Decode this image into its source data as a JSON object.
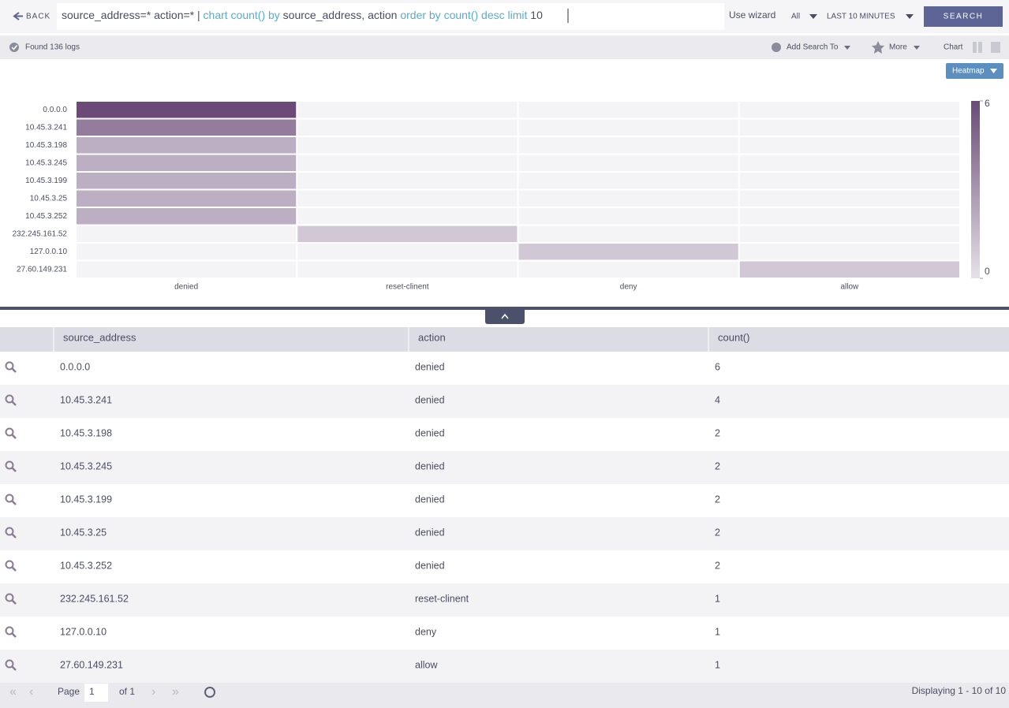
{
  "toolbar": {
    "back": "BACK",
    "query": [
      {
        "text": "source_address=* action=* | ",
        "color": "#4a4d63"
      },
      {
        "text": "chart count() by",
        "color": "#5aaad0"
      },
      {
        "text": " source_address, action ",
        "color": "#4a4d63"
      },
      {
        "text": "order by count() desc limit",
        "color": "#5aaad0"
      },
      {
        "text": " 10",
        "color": "#4a4d63"
      }
    ],
    "wizard": "Use wizard",
    "scope": "All",
    "range": "LAST 10 MINUTES",
    "search": "SEARCH"
  },
  "status": {
    "found": "Found 136 logs",
    "add_search": "Add Search To",
    "more": "More",
    "chart": "Chart"
  },
  "heatmap": {
    "mode": "Heatmap",
    "x": [
      "denied",
      "reset-clinent",
      "deny",
      "allow"
    ],
    "y": [
      "0.0.0.0",
      "10.45.3.241",
      "10.45.3.198",
      "10.45.3.245",
      "10.45.3.199",
      "10.45.3.25",
      "10.45.3.252",
      "232.245.161.52",
      "127.0.0.10",
      "27.60.149.231"
    ],
    "values": [
      [
        6,
        null,
        null,
        null
      ],
      [
        4,
        null,
        null,
        null
      ],
      [
        2,
        null,
        null,
        null
      ],
      [
        2,
        null,
        null,
        null
      ],
      [
        2,
        null,
        null,
        null
      ],
      [
        2,
        null,
        null,
        null
      ],
      [
        2,
        null,
        null,
        null
      ],
      [
        null,
        1,
        null,
        null
      ],
      [
        null,
        null,
        1,
        null
      ],
      [
        null,
        null,
        null,
        1
      ]
    ],
    "zlim": [
      0,
      6
    ],
    "zticks": [
      0,
      6
    ],
    "colorscale": [
      "#e6e1e8",
      "#6b4a78"
    ],
    "empty_color": "#f4f4f6"
  },
  "table": {
    "columns": [
      "source_address",
      "action",
      "count()"
    ],
    "rows": [
      [
        "0.0.0.0",
        "denied",
        6
      ],
      [
        "10.45.3.241",
        "denied",
        4
      ],
      [
        "10.45.3.198",
        "denied",
        2
      ],
      [
        "10.45.3.245",
        "denied",
        2
      ],
      [
        "10.45.3.199",
        "denied",
        2
      ],
      [
        "10.45.3.25",
        "denied",
        2
      ],
      [
        "10.45.3.252",
        "denied",
        2
      ],
      [
        "232.245.161.52",
        "reset-clinent",
        1
      ],
      [
        "127.0.0.10",
        "deny",
        1
      ],
      [
        "27.60.149.231",
        "allow",
        1
      ]
    ]
  },
  "pager": {
    "page_label": "Page",
    "page": "1",
    "of": "of 1",
    "display": "Displaying 1 - 10 of 10"
  }
}
